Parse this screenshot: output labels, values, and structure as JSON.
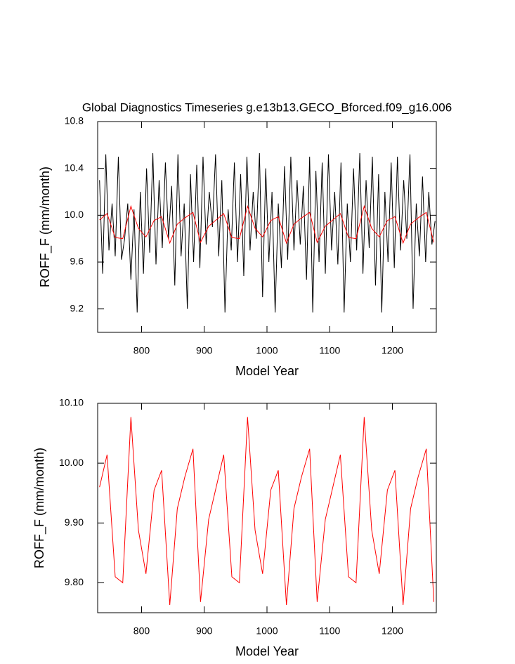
{
  "chart_data": [
    {
      "type": "line",
      "title": "Global Diagnostics Timeseries g.e13b13.GECO_Bforced.f09_g16.006",
      "x_label": "Model Year",
      "y_label": "ROFF_F (mm/month)",
      "xlim": [
        730,
        1270
      ],
      "xticks": [
        800,
        900,
        1000,
        1100,
        1200
      ],
      "ylim": [
        9.0,
        10.8
      ],
      "yticks": [
        9.2,
        9.6,
        {
          "value": 10,
          "label": "10.0"
        },
        10.4,
        10.8
      ],
      "series": [
        {
          "color": "#000000",
          "x": [
            733,
            738,
            743,
            748,
            753,
            758,
            763,
            768,
            773,
            778,
            783,
            788,
            793,
            798,
            803,
            808,
            813,
            818,
            823,
            828,
            833,
            838,
            843,
            848,
            853,
            858,
            863,
            868,
            873,
            878,
            883,
            888,
            893,
            898,
            903,
            908,
            913,
            918,
            923,
            928,
            933,
            938,
            943,
            948,
            953,
            958,
            963,
            968,
            973,
            978,
            983,
            988,
            993,
            998,
            1003,
            1008,
            1013,
            1018,
            1023,
            1028,
            1033,
            1038,
            1043,
            1048,
            1053,
            1058,
            1063,
            1068,
            1073,
            1078,
            1083,
            1088,
            1093,
            1098,
            1103,
            1108,
            1113,
            1118,
            1123,
            1128,
            1133,
            1138,
            1143,
            1148,
            1153,
            1158,
            1163,
            1168,
            1173,
            1178,
            1183,
            1188,
            1193,
            1198,
            1203,
            1208,
            1213,
            1218,
            1223,
            1228,
            1233,
            1238,
            1243,
            1248,
            1253,
            1258,
            1263,
            1268
          ],
          "values": [
            10.3,
            9.5,
            10.52,
            9.7,
            10.1,
            9.65,
            10.5,
            9.62,
            9.8,
            10.1,
            9.45,
            10.05,
            9.17,
            10.2,
            9.5,
            10.4,
            9.68,
            10.53,
            9.58,
            10.3,
            9.72,
            10.45,
            9.8,
            10.25,
            9.4,
            10.52,
            9.65,
            10.1,
            9.2,
            10.35,
            9.6,
            10.43,
            9.55,
            10.5,
            9.75,
            10.2,
            9.9,
            10.52,
            9.65,
            10.3,
            9.17,
            10.05,
            9.7,
            10.45,
            9.6,
            10.35,
            9.48,
            10.5,
            9.7,
            10.2,
            9.8,
            10.53,
            9.3,
            10.4,
            9.6,
            10.2,
            9.17,
            10.1,
            9.55,
            10.42,
            9.62,
            10.5,
            9.7,
            10.3,
            9.75,
            10.25,
            9.45,
            10.5,
            9.17,
            10.38,
            9.6,
            10.45,
            9.5,
            10.52,
            9.7,
            10.2,
            9.58,
            10.45,
            9.17,
            10.1,
            9.6,
            10.4,
            9.7,
            10.53,
            9.5,
            10.3,
            9.72,
            10.5,
            9.4,
            10.35,
            9.17,
            10.2,
            9.6,
            10.45,
            9.55,
            10.5,
            9.7,
            10.3,
            9.8,
            10.52,
            9.2,
            10.1,
            9.65,
            10.33,
            9.6,
            10.2,
            9.75,
            9.95
          ]
        },
        {
          "color": "#ff0000",
          "x": [
            733,
            745,
            758,
            770,
            783,
            795,
            807,
            820,
            832,
            845,
            857,
            869,
            882,
            894,
            907,
            919,
            931,
            944,
            956,
            969,
            981,
            993,
            1006,
            1018,
            1031,
            1043,
            1055,
            1068,
            1080,
            1093,
            1105,
            1117,
            1130,
            1142,
            1155,
            1167,
            1179,
            1192,
            1204,
            1217,
            1229,
            1241,
            1254,
            1266
          ],
          "values": [
            9.96,
            10.014,
            9.81,
            9.8,
            10.077,
            9.888,
            9.815,
            9.955,
            9.988,
            9.763,
            9.924,
            9.977,
            10.024,
            9.768,
            9.906,
            9.96,
            10.014,
            9.81,
            9.8,
            10.077,
            9.888,
            9.815,
            9.955,
            9.988,
            9.763,
            9.924,
            9.977,
            10.024,
            9.768,
            9.906,
            9.96,
            10.014,
            9.81,
            9.8,
            10.077,
            9.888,
            9.815,
            9.955,
            9.988,
            9.763,
            9.924,
            9.977,
            10.024,
            9.768
          ]
        }
      ]
    },
    {
      "type": "line",
      "x_label": "Model Year",
      "y_label": "ROFF_F (mm/month)",
      "xlim": [
        730,
        1270
      ],
      "xticks": [
        800,
        900,
        1000,
        1100,
        1200
      ],
      "ylim": [
        9.75,
        10.1
      ],
      "yticks": [
        {
          "value": 9.8,
          "label": "9.80"
        },
        {
          "value": 9.9,
          "label": "9.90"
        },
        {
          "value": 10,
          "label": "10.00"
        },
        {
          "value": 10.1,
          "label": "10.10"
        }
      ],
      "series": [
        {
          "color": "#ff0000",
          "x": [
            733,
            745,
            758,
            770,
            783,
            795,
            807,
            820,
            832,
            845,
            857,
            869,
            882,
            894,
            907,
            919,
            931,
            944,
            956,
            969,
            981,
            993,
            1006,
            1018,
            1031,
            1043,
            1055,
            1068,
            1080,
            1093,
            1105,
            1117,
            1130,
            1142,
            1155,
            1167,
            1179,
            1192,
            1204,
            1217,
            1229,
            1241,
            1254,
            1266
          ],
          "values": [
            9.96,
            10.014,
            9.81,
            9.8,
            10.077,
            9.888,
            9.815,
            9.955,
            9.988,
            9.763,
            9.924,
            9.977,
            10.024,
            9.768,
            9.906,
            9.96,
            10.014,
            9.81,
            9.8,
            10.077,
            9.888,
            9.815,
            9.955,
            9.988,
            9.763,
            9.924,
            9.977,
            10.024,
            9.768,
            9.906,
            9.96,
            10.014,
            9.81,
            9.8,
            10.077,
            9.888,
            9.815,
            9.955,
            9.988,
            9.763,
            9.924,
            9.977,
            10.024,
            9.768
          ]
        }
      ]
    }
  ]
}
